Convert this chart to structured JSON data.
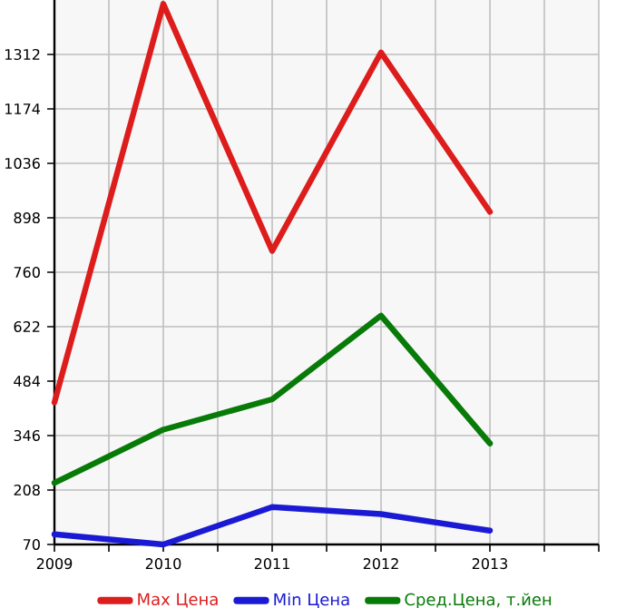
{
  "chart_data": {
    "type": "line",
    "x": [
      2009,
      2010,
      2011,
      2012,
      2013
    ],
    "series": [
      {
        "name": "Max Цена",
        "color": "#dd1c1c",
        "values": [
          430,
          1440,
          814,
          1317,
          913
        ]
      },
      {
        "name": "Min Цена",
        "color": "#1a1ad4",
        "values": [
          96,
          70,
          165,
          147,
          105
        ]
      },
      {
        "name": "Сред.Цена, т.йен",
        "color": "#087a08",
        "values": [
          226,
          361,
          438,
          650,
          326
        ]
      }
    ],
    "xlim": [
      2009,
      2014
    ],
    "ylim": [
      70,
      1450
    ],
    "xticks": [
      2009,
      2010,
      2011,
      2012,
      2013,
      {
        "value": 2014,
        "label": null
      }
    ],
    "yticks": [
      70,
      208,
      346,
      484,
      622,
      760,
      898,
      1036,
      1174,
      1312
    ],
    "grid": true,
    "legend": "bottom",
    "marker": "none",
    "line_style": "solid"
  }
}
